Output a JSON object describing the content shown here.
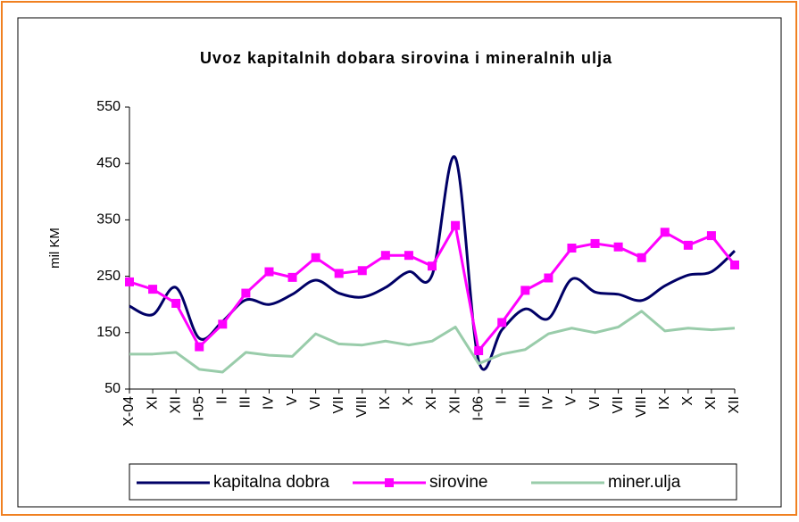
{
  "chart_data": {
    "type": "line",
    "title": "Uvoz kapitalnih dobara sirovina i mineralnih ulja",
    "y_label": "mil KM",
    "categories": [
      "X-04",
      "XI",
      "XII",
      "I-05",
      "II",
      "III",
      "IV",
      "V",
      "VI",
      "VII",
      "VIII",
      "IX",
      "X",
      "XI",
      "XII",
      "I-06",
      "II",
      "III",
      "IV",
      "V",
      "VI",
      "VII",
      "VIII",
      "IX",
      "X",
      "XI",
      "XII"
    ],
    "series": [
      {
        "name": "kapitalna dobra",
        "color": "#000066",
        "marker": "none",
        "smooth": true,
        "values": [
          197,
          182,
          230,
          140,
          170,
          208,
          200,
          218,
          243,
          220,
          213,
          230,
          258,
          252,
          460,
          100,
          155,
          192,
          175,
          245,
          222,
          218,
          207,
          233,
          252,
          258,
          295
        ]
      },
      {
        "name": "sirovine",
        "color": "#ff00ff",
        "marker": "square",
        "smooth": false,
        "values": [
          240,
          227,
          202,
          125,
          165,
          220,
          258,
          248,
          283,
          255,
          260,
          287,
          287,
          268,
          340,
          118,
          168,
          225,
          247,
          300,
          308,
          302,
          283,
          328,
          305,
          322,
          270
        ]
      },
      {
        "name": "miner.ulja",
        "color": "#99ccaa",
        "marker": "none",
        "smooth": false,
        "values": [
          112,
          112,
          115,
          85,
          80,
          115,
          110,
          108,
          148,
          130,
          128,
          135,
          128,
          135,
          160,
          95,
          112,
          120,
          148,
          158,
          150,
          160,
          188,
          153,
          158,
          155,
          158
        ]
      }
    ],
    "ylim": [
      50,
      550
    ],
    "yticks": [
      50,
      150,
      250,
      350,
      450,
      550
    ],
    "grid": false,
    "legend": "bottom"
  }
}
